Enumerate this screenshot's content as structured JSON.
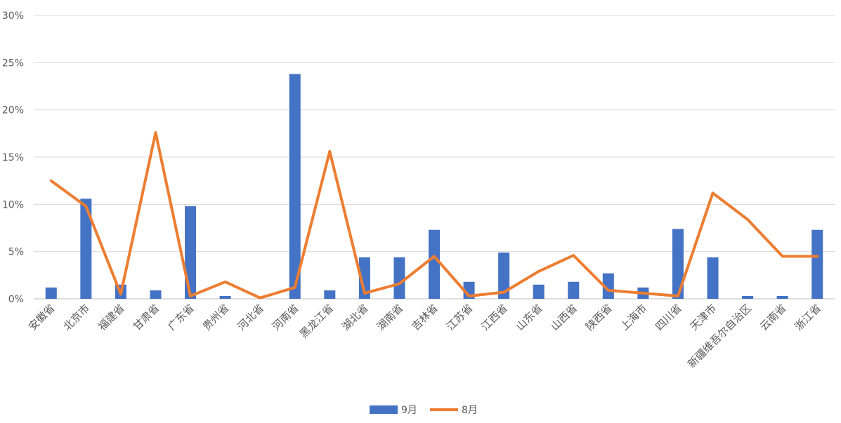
{
  "chart_data": {
    "type": "bar+line",
    "categories": [
      "安徽省",
      "北京市",
      "福建省",
      "甘肃省",
      "广东省",
      "贵州省",
      "河北省",
      "河南省",
      "黑龙江省",
      "湖北省",
      "湖南省",
      "吉林省",
      "江苏省",
      "江西省",
      "山东省",
      "山西省",
      "陕西省",
      "上海市",
      "四川省",
      "天津市",
      "新疆维吾尔自治区",
      "云南省",
      "浙江省"
    ],
    "series": [
      {
        "name": "9月",
        "type": "bar",
        "color": "#4472C4",
        "values": [
          1.2,
          10.6,
          1.5,
          0.9,
          9.8,
          0.3,
          0.0,
          23.8,
          0.9,
          4.4,
          4.4,
          7.3,
          1.8,
          4.9,
          1.5,
          1.8,
          2.7,
          1.2,
          7.4,
          4.4,
          0.3,
          0.3,
          7.3
        ]
      },
      {
        "name": "8月",
        "type": "line",
        "color": "#ED7D31",
        "values": [
          12.5,
          9.8,
          0.5,
          17.6,
          0.3,
          1.8,
          0.1,
          1.2,
          15.6,
          0.6,
          1.6,
          4.5,
          0.3,
          0.7,
          2.9,
          4.6,
          0.9,
          0.6,
          0.3,
          11.2,
          8.4,
          4.5,
          4.5
        ]
      }
    ],
    "y_ticks": [
      "0%",
      "5%",
      "10%",
      "15%",
      "20%",
      "25%",
      "30%"
    ],
    "ylim": [
      0,
      30
    ],
    "grid": true,
    "legend": "bottom-center"
  }
}
